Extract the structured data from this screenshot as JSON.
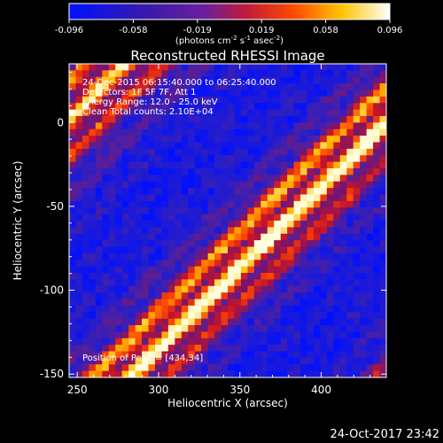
{
  "colorbar": {
    "ticks": [
      "-0.096",
      "-0.058",
      "-0.019",
      "0.019",
      "0.058",
      "0.096"
    ],
    "units": "(photons cm",
    "units_exp1": "-2",
    "units_mid": " s",
    "units_exp2": "-1",
    "units_mid2": " asec",
    "units_exp3": "-2",
    "units_end": ")",
    "range": [
      -0.096,
      0.096
    ]
  },
  "chart_data": {
    "type": "heatmap",
    "title": "Reconstructed RHESSI Image",
    "xlabel": "Heliocentric X (arcsec)",
    "ylabel": "Heliocentric Y (arcsec)",
    "xlim": [
      245,
      440
    ],
    "ylim": [
      -152,
      35
    ],
    "xticks": [
      250,
      300,
      350,
      400
    ],
    "yticks": [
      0,
      -50,
      -100,
      -150
    ],
    "xtick_labels": [
      "250",
      "300",
      "350",
      "400"
    ],
    "ytick_labels": [
      "0",
      "-50",
      "-100",
      "-150"
    ],
    "peak": [
      434,
      34
    ],
    "colormap": "blue-purple-red-yellow-white"
  },
  "annotations": {
    "line1": "24-Dec-2015 06:15:40.000 to 06:25:40.000",
    "line2": "Detectors: 1F 5F 7F, Att 1",
    "line3": "Energy Range: 12.0 - 25.0 keV",
    "line4": "Clean    Total counts: 2.10E+04",
    "peak_label": "Position of Peak = [434,34]"
  },
  "footer": {
    "timestamp": "24-Oct-2017 23:42"
  }
}
